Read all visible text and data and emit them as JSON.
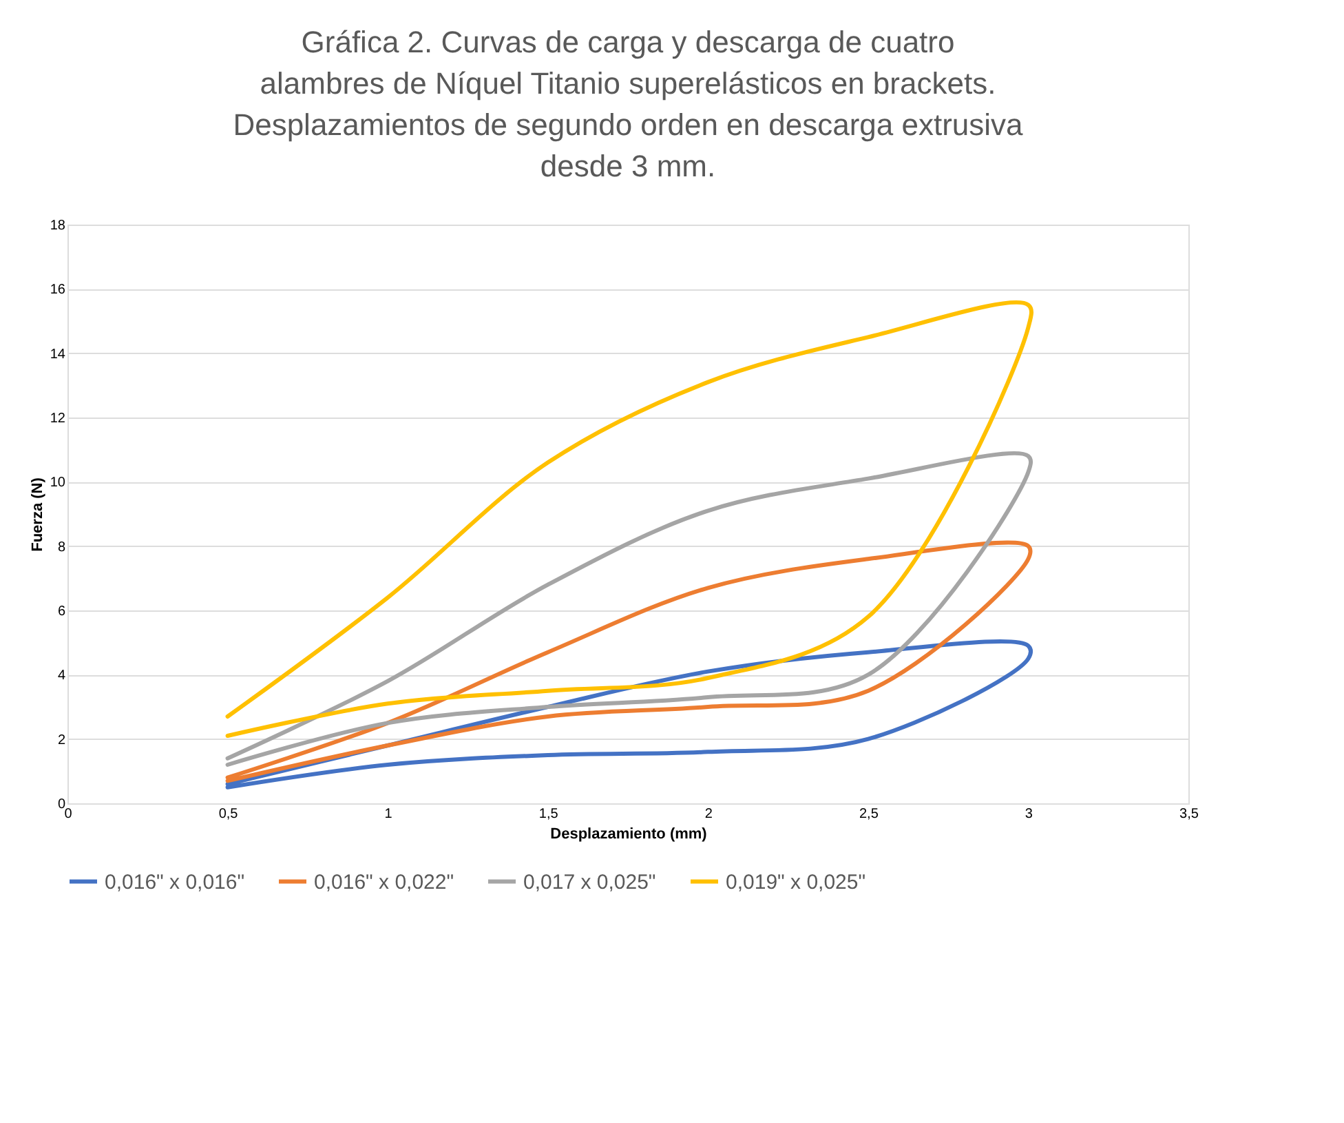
{
  "chart_data": {
    "type": "line",
    "title": "Gráfica 2. Curvas de carga y descarga de cuatro alambres de Níquel Titanio superelásticos en brackets. Desplazamientos de segundo orden en descarga extrusiva desde 3 mm.",
    "xlabel": "Desplazamiento (mm)",
    "ylabel": "Fuerza (N)",
    "series": [
      {
        "name": "0,016\" x 0,016\"",
        "color": "#4472c4",
        "x": [
          0.5,
          1,
          1.5,
          2,
          2.5,
          3,
          3,
          2.5,
          2,
          1.5,
          1,
          0.5
        ],
        "values": [
          0.6,
          1.8,
          3.0,
          4.1,
          4.7,
          4.9,
          4.5,
          2.0,
          1.6,
          1.5,
          1.2,
          0.5
        ]
      },
      {
        "name": "0,016\" x 0,022\"",
        "color": "#ed7d31",
        "x": [
          0.5,
          1,
          1.5,
          2,
          2.5,
          3,
          3,
          2.5,
          2,
          1.5,
          1,
          0.5
        ],
        "values": [
          0.8,
          2.5,
          4.7,
          6.7,
          7.6,
          8.0,
          7.6,
          3.5,
          3.0,
          2.7,
          1.8,
          0.7
        ]
      },
      {
        "name": "0,017 x 0,025\"",
        "color": "#a5a5a5",
        "x": [
          0.5,
          1,
          1.5,
          2,
          2.5,
          3,
          3,
          2.5,
          2,
          1.5,
          1,
          0.5
        ],
        "values": [
          1.4,
          3.8,
          6.8,
          9.1,
          10.1,
          10.8,
          10.3,
          4.0,
          3.3,
          3.0,
          2.5,
          1.2
        ]
      },
      {
        "name": "0,019\" x 0,025\"",
        "color": "#ffc000",
        "x": [
          0.5,
          1,
          1.5,
          2,
          2.5,
          3,
          3,
          2.5,
          2,
          1.5,
          1,
          0.5
        ],
        "values": [
          2.7,
          6.4,
          10.6,
          13.1,
          14.5,
          15.5,
          14.8,
          5.8,
          3.9,
          3.5,
          3.1,
          2.1
        ]
      }
    ],
    "xlim": [
      0,
      3.5
    ],
    "xticks": [
      0,
      {
        "value": 0.5,
        "label": "0,5"
      },
      1,
      {
        "value": 1.5,
        "label": "1,5"
      },
      2,
      {
        "value": 2.5,
        "label": "2,5"
      },
      3,
      {
        "value": 3.5,
        "label": "3,5"
      }
    ],
    "ylim": [
      0,
      18
    ],
    "yticks": [
      0,
      2,
      4,
      6,
      8,
      10,
      12,
      14,
      16,
      18
    ],
    "grid": "y",
    "legend": "bottom",
    "marker": "none",
    "line_style": "solid"
  }
}
